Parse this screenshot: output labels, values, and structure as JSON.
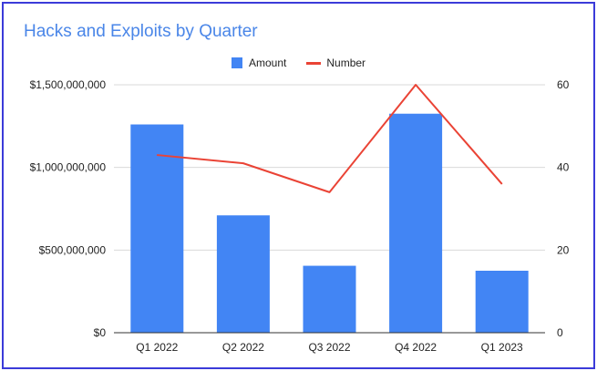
{
  "chart_data": {
    "type": "bar",
    "title": "Hacks and Exploits by Quarter",
    "categories": [
      "Q1 2022",
      "Q2 2022",
      "Q3 2022",
      "Q4 2022",
      "Q1 2023"
    ],
    "series": [
      {
        "name": "Amount",
        "type": "bar",
        "axis": "left",
        "color": "#4285f4",
        "values": [
          1260000000,
          710000000,
          405000000,
          1325000000,
          375000000
        ]
      },
      {
        "name": "Number",
        "type": "line",
        "axis": "right",
        "color": "#ea4335",
        "values": [
          43,
          41,
          34,
          60,
          36
        ]
      }
    ],
    "y_left": {
      "ylim": [
        0,
        1500000000
      ],
      "ticks": [
        0,
        500000000,
        1000000000,
        1500000000
      ],
      "tick_labels": [
        "$0",
        "$500,000,000",
        "$1,000,000,000",
        "$1,500,000,000"
      ]
    },
    "y_right": {
      "ylim": [
        0,
        60
      ],
      "ticks": [
        0,
        20,
        40,
        60
      ],
      "tick_labels": [
        "0",
        "20",
        "40",
        "60"
      ]
    },
    "grid": true,
    "legend_position": "top-center",
    "xlabel": "",
    "ylabel": ""
  }
}
